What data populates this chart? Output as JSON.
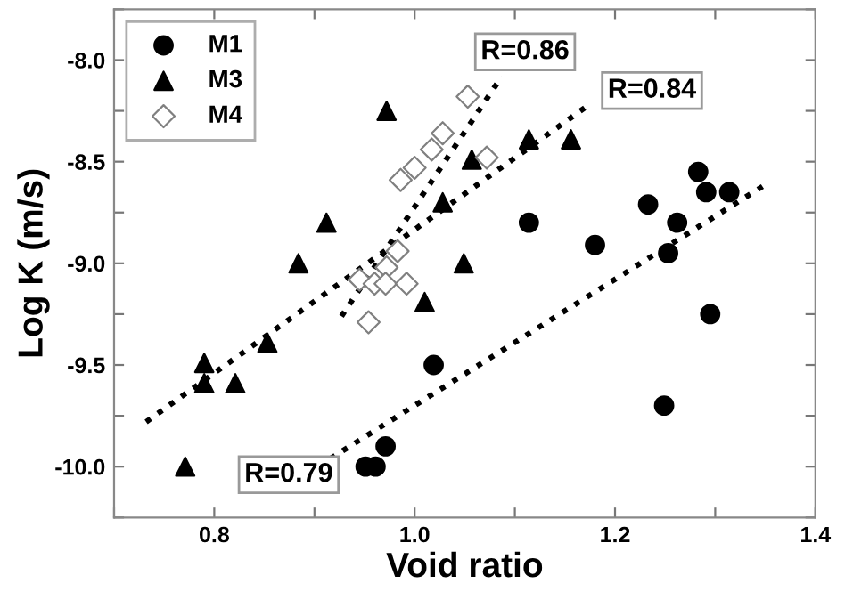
{
  "chart_data": {
    "type": "scatter",
    "xlabel": "Void ratio",
    "ylabel": "Log K (m/s)",
    "xlim": [
      0.7,
      1.4
    ],
    "ylim": [
      -10.25,
      -7.75
    ],
    "xticks": [
      {
        "value": 0.7,
        "label": null
      },
      0.8,
      {
        "value": 0.9,
        "label": null
      },
      {
        "value": 1.0,
        "label": "1.0"
      },
      {
        "value": 1.1,
        "label": null
      },
      1.2,
      {
        "value": 1.3,
        "label": null
      },
      1.4
    ],
    "yticks": [
      {
        "value": -10.25,
        "label": null
      },
      {
        "value": -10.0,
        "label": "-10.0"
      },
      {
        "value": -9.75,
        "label": null
      },
      -9.5,
      {
        "value": -9.25,
        "label": null
      },
      {
        "value": -9.0,
        "label": "-9.0"
      },
      {
        "value": -8.75,
        "label": null
      },
      -8.5,
      {
        "value": -8.25,
        "label": null
      },
      {
        "value": -8.0,
        "label": "-8.0"
      },
      {
        "value": -7.75,
        "label": null
      }
    ],
    "grid": false,
    "legend": "top left",
    "series": [
      {
        "name": "M1",
        "marker": "circle",
        "color": "#000000",
        "x": [
          1.114,
          1.18,
          1.233,
          1.253,
          1.262,
          1.283,
          1.291,
          1.314,
          1.295,
          1.249,
          1.019,
          0.971,
          0.951,
          0.961
        ],
        "values": [
          -8.8,
          -8.91,
          -8.71,
          -8.95,
          -8.8,
          -8.55,
          -8.65,
          -8.65,
          -9.25,
          -9.7,
          -9.5,
          -9.9,
          -10.0,
          -10.0
        ]
      },
      {
        "name": "M3",
        "marker": "triangle",
        "color": "#000000",
        "x": [
          0.972,
          1.114,
          1.156,
          1.057,
          1.028,
          0.912,
          0.884,
          1.049,
          1.01,
          0.853,
          0.79,
          0.79,
          0.821,
          0.771
        ],
        "values": [
          -8.25,
          -8.39,
          -8.39,
          -8.49,
          -8.7,
          -8.8,
          -9.0,
          -9.0,
          -9.19,
          -9.39,
          -9.49,
          -9.59,
          -9.59,
          -10.0
        ]
      },
      {
        "name": "M4",
        "marker": "diamond",
        "color": "#808080",
        "x": [
          1.053,
          1.028,
          1.017,
          1.0,
          0.986,
          1.072,
          0.983,
          0.972,
          0.945,
          0.96,
          0.971,
          0.992,
          0.954
        ],
        "values": [
          -8.18,
          -8.36,
          -8.44,
          -8.53,
          -8.59,
          -8.48,
          -8.94,
          -9.02,
          -9.08,
          -9.1,
          -9.1,
          -9.1,
          -9.29
        ]
      },
      {
        "type": "line",
        "marker": "none",
        "line_style": "dotted",
        "color": "#000000",
        "x": [
          0.927,
          1.087
        ],
        "values": [
          -9.26,
          -8.08
        ]
      },
      {
        "type": "line",
        "marker": "none",
        "line_style": "dotted",
        "color": "#000000",
        "x": [
          0.732,
          1.174
        ],
        "values": [
          -9.78,
          -8.22
        ]
      },
      {
        "type": "line",
        "marker": "none",
        "line_style": "dotted",
        "color": "#000000",
        "x": [
          0.916,
          1.351
        ],
        "values": [
          -9.96,
          -8.61
        ]
      }
    ],
    "annotations": [
      "R=0.86",
      "R=0.84",
      "R=0.79"
    ]
  }
}
